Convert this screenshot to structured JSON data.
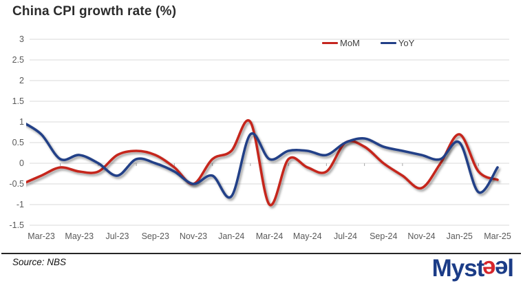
{
  "chart_data": {
    "type": "line",
    "title": "China CPI growth rate (%)",
    "x": [
      "Feb-23",
      "Mar-23",
      "Apr-23",
      "May-23",
      "Jun-23",
      "Jul-23",
      "Aug-23",
      "Sep-23",
      "Oct-23",
      "Nov-23",
      "Dec-23",
      "Jan-24",
      "Feb-24",
      "Mar-24",
      "Apr-24",
      "May-24",
      "Jun-24",
      "Jul-24",
      "Aug-24",
      "Sep-24",
      "Oct-24",
      "Nov-24",
      "Dec-24",
      "Jan-25",
      "Feb-25",
      "Mar-25"
    ],
    "x_tick_labels": [
      "Mar-23",
      "May-23",
      "Jul-23",
      "Sep-23",
      "Nov-23",
      "Jan-24",
      "Mar-24",
      "May-24",
      "Jul-24",
      "Sep-24",
      "Nov-24",
      "Jan-25",
      "Mar-25"
    ],
    "series": [
      {
        "name": "MoM",
        "color": "#C5251F",
        "values": [
          -0.5,
          -0.3,
          -0.1,
          -0.2,
          -0.2,
          0.2,
          0.3,
          0.2,
          -0.1,
          -0.5,
          0.1,
          0.3,
          1.0,
          -1.0,
          0.1,
          -0.1,
          -0.2,
          0.5,
          0.4,
          0.0,
          -0.3,
          -0.6,
          0.0,
          0.7,
          -0.2,
          -0.4
        ]
      },
      {
        "name": "YoY",
        "color": "#213F87",
        "values": [
          1.0,
          0.7,
          0.1,
          0.2,
          0.0,
          -0.3,
          0.1,
          0.0,
          -0.2,
          -0.5,
          -0.3,
          -0.8,
          0.7,
          0.1,
          0.3,
          0.3,
          0.2,
          0.5,
          0.6,
          0.4,
          0.3,
          0.2,
          0.1,
          0.5,
          -0.7,
          -0.1
        ]
      }
    ],
    "ylim": [
      -1.5,
      3
    ],
    "ytick_step": 0.5,
    "y_tick_labels": [
      "3",
      "2.5",
      "2",
      "1.5",
      "1",
      "0.5",
      "0",
      "-0.5",
      "-1",
      "-1.5"
    ],
    "grid": true,
    "legend_position": "top-right-of-plot"
  },
  "footer": {
    "source": "Source: NBS",
    "logo": {
      "text_myst": "Myst",
      "text_e1": "e",
      "text_e2": "e",
      "text_l": "l",
      "navy": "#1B3C87",
      "red": "#D6262C"
    }
  },
  "colors": {
    "background": "#FFFFFF",
    "grid": "#D9D9D9",
    "tick": "#A6A6A6",
    "axis_text": "#595959",
    "title_text": "#2B2B2B",
    "divider": "#262626"
  }
}
